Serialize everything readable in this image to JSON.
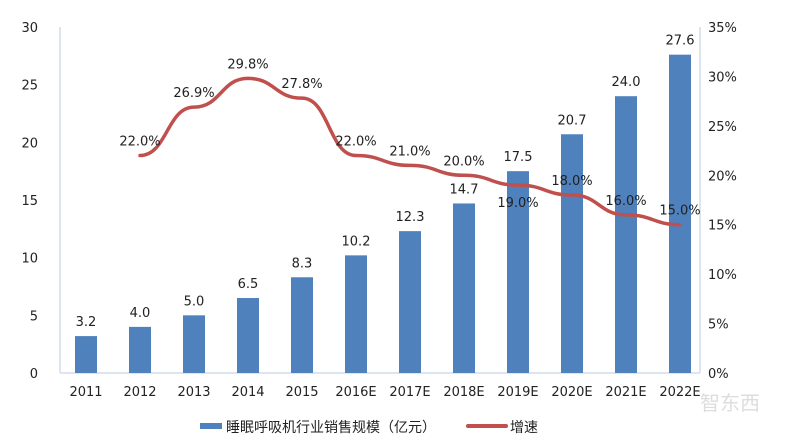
{
  "chart_data": {
    "type": "bar+line",
    "categories": [
      "2011",
      "2012",
      "2013",
      "2014",
      "2015",
      "2016E",
      "2017E",
      "2018E",
      "2019E",
      "2020E",
      "2021E",
      "2022E"
    ],
    "series": [
      {
        "name": "睡眠呼吸机行业销售规模（亿元）",
        "type": "bar",
        "axis": "left",
        "values": [
          3.2,
          4.0,
          5.0,
          6.5,
          8.3,
          10.2,
          12.3,
          14.7,
          17.5,
          20.7,
          24.0,
          27.6
        ],
        "labels": [
          "3.2",
          "4.0",
          "5.0",
          "6.5",
          "8.3",
          "10.2",
          "12.3",
          "14.7",
          "17.5",
          "20.7",
          "24.0",
          "27.6"
        ]
      },
      {
        "name": "增速",
        "type": "line",
        "axis": "right",
        "values": [
          null,
          22.0,
          26.9,
          29.8,
          27.8,
          22.0,
          21.0,
          20.0,
          19.0,
          18.0,
          16.0,
          15.0
        ],
        "labels": [
          "",
          "22.0%",
          "26.9%",
          "29.8%",
          "27.8%",
          "22.0%",
          "21.0%",
          "20.0%",
          "19.0%",
          "18.0%",
          "16.0%",
          "15.0%"
        ]
      }
    ],
    "ylim_left": [
      0,
      30
    ],
    "yticks_left": [
      "0",
      "5",
      "10",
      "15",
      "20",
      "25",
      "30"
    ],
    "ylim_right": [
      0,
      35
    ],
    "yticks_right": [
      "0%",
      "5%",
      "10%",
      "15%",
      "20%",
      "25%",
      "30%",
      "35%"
    ],
    "grid": false,
    "legend_position": "bottom",
    "colors": {
      "bar": "#4f81bd",
      "line": "#c0504d"
    }
  },
  "watermark": "智东西"
}
